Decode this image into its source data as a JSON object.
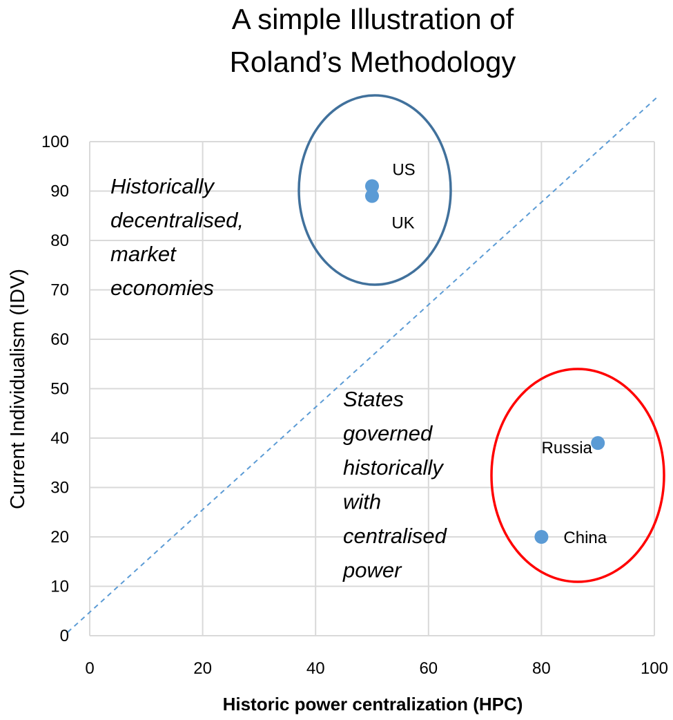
{
  "chart_data": {
    "type": "scatter",
    "title": [
      "A simple Illustration of",
      "Roland’s Methodology"
    ],
    "xlabel": "Historic power centralization (HPC)",
    "ylabel": "Current Individualism (IDV)",
    "xlim": [
      0,
      100
    ],
    "ylim": [
      0,
      100
    ],
    "xticks": [
      "0",
      "20",
      "40",
      "60",
      "80",
      "100"
    ],
    "yticks": [
      "0",
      "10",
      "20",
      "30",
      "40",
      "50",
      "60",
      "70",
      "80",
      "90",
      "100"
    ],
    "grid": true,
    "series": [
      {
        "points": [
          {
            "label": "US",
            "x": 50,
            "y": 91
          },
          {
            "label": "UK",
            "x": 50,
            "y": 89
          },
          {
            "label": "Russia",
            "x": 90,
            "y": 39
          },
          {
            "label": "China",
            "x": 80,
            "y": 20
          }
        ],
        "color": "#5b9bd5"
      }
    ],
    "trend_line": {
      "style": "dashed",
      "color": "#5b9bd5",
      "from": [
        0,
        0
      ],
      "to": [
        100,
        100
      ]
    },
    "annotations": [
      {
        "lines": [
          "Historically",
          "decentralised,",
          "market",
          "economies"
        ],
        "style": "italic"
      },
      {
        "lines": [
          "States",
          "governed",
          "historically",
          "with",
          "centralised",
          "power"
        ],
        "style": "italic"
      }
    ],
    "circles": [
      {
        "color": "#41719c",
        "encloses": [
          "US",
          "UK"
        ]
      },
      {
        "color": "#ff0000",
        "encloses": [
          "Russia",
          "China"
        ]
      }
    ]
  }
}
